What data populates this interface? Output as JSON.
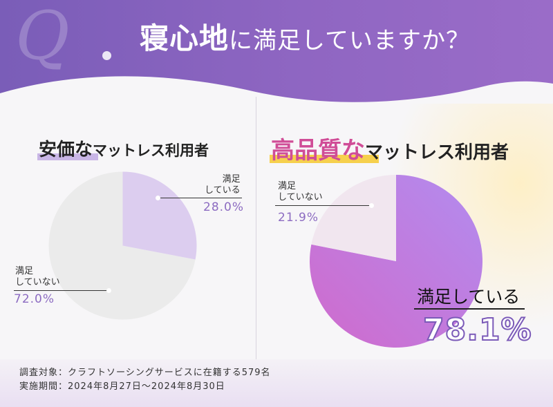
{
  "header": {
    "q_letter": "Q",
    "title_strong": "寝心地",
    "title_rest": "に満足していますか？"
  },
  "colors": {
    "header_purple": "#8a63c0",
    "satisfied_light": "#dccdef",
    "not_satisfied": "#ebebeb",
    "satisfied_gradient_start": "#cf6ecf",
    "satisfied_gradient_end": "#b48ef0",
    "highlight_pink": "#d04d97",
    "highlight_yellow": "#f6d04d"
  },
  "left_chart": {
    "title_strong": "安価な",
    "title_rest": "マットレス利用者",
    "satisfied_label_line1": "満足",
    "satisfied_label_line2": "している",
    "satisfied_pct": "28.0%",
    "not_label_line1": "満足",
    "not_label_line2": "していない",
    "not_pct": "72.0%"
  },
  "right_chart": {
    "title_strong": "高品質な",
    "title_rest": "マットレス利用者",
    "not_label_line1": "満足",
    "not_label_line2": "していない",
    "not_pct": "21.9%",
    "satisfied_label": "満足している",
    "satisfied_pct": "78.1%"
  },
  "footer": {
    "survey_target": "調査対象：クラフトソーシングサービスに在籍する579名",
    "survey_period": "実施期間：2024年8月27日〜2024年8月30日"
  },
  "chart_data": [
    {
      "type": "pie",
      "title": "安価なマットレス利用者",
      "categories": [
        "満足している",
        "満足していない"
      ],
      "values": [
        28.0,
        72.0
      ]
    },
    {
      "type": "pie",
      "title": "高品質なマットレス利用者",
      "categories": [
        "満足している",
        "満足していない"
      ],
      "values": [
        78.1,
        21.9
      ]
    }
  ]
}
